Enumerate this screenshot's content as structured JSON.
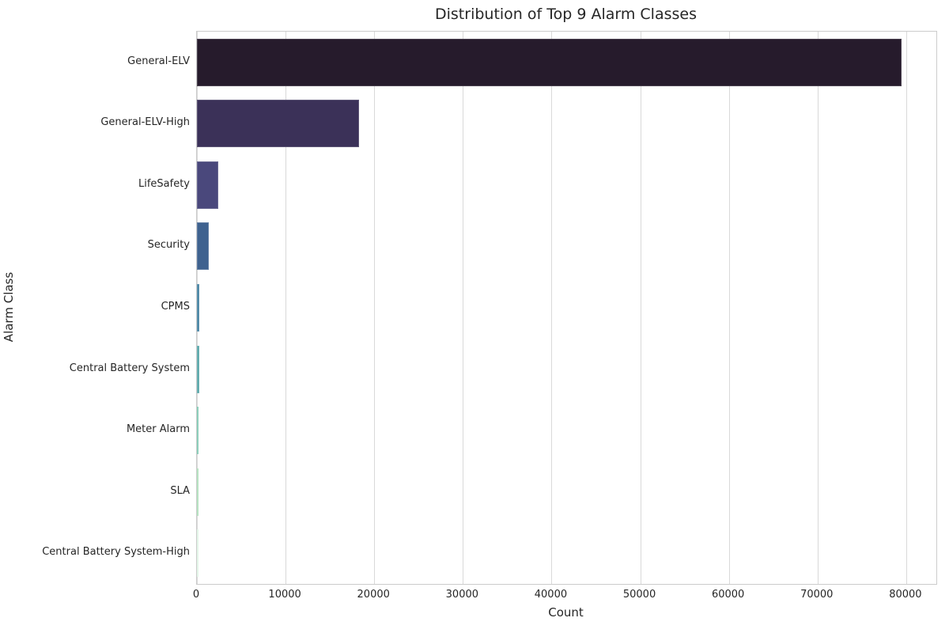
{
  "figure": {
    "background_color": "#ffffff",
    "text_color": "#262626",
    "grid_color": "#d9d9d9",
    "spine_color": "#cccccc"
  },
  "chart_data": {
    "type": "bar",
    "orientation": "horizontal",
    "title": "Distribution of Top 9 Alarm Classes",
    "xlabel": "Count",
    "ylabel": "Alarm Class",
    "categories": [
      "General-ELV",
      "General-ELV-High",
      "LifeSafety",
      "Security",
      "CPMS",
      "Central Battery System",
      "Meter Alarm",
      "SLA",
      "Central Battery System-High"
    ],
    "values": [
      79500,
      18300,
      2400,
      1380,
      280,
      260,
      20,
      15,
      10
    ],
    "bar_colors": [
      "#261b2c",
      "#3b3158",
      "#4a487c",
      "#3f628f",
      "#4380a1",
      "#55a5a8",
      "#74c5ac",
      "#a8ddb5",
      "#def5e5"
    ],
    "xlim": [
      0,
      83400
    ],
    "xticks": [
      0,
      10000,
      20000,
      30000,
      40000,
      50000,
      60000,
      70000,
      80000
    ],
    "grid": "vertical",
    "legend": "none"
  }
}
